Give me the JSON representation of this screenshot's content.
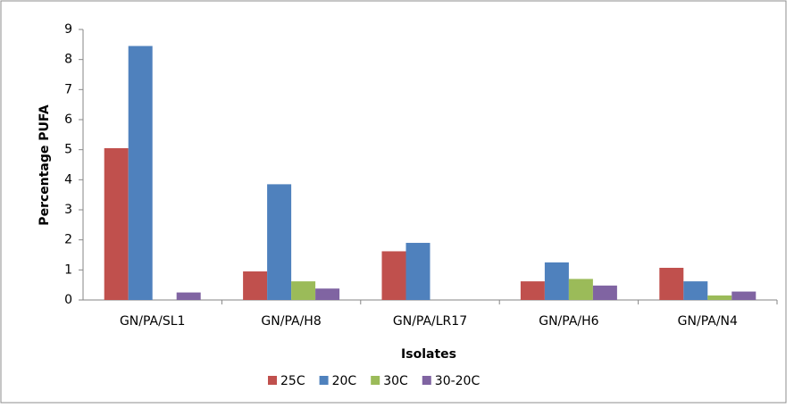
{
  "chart_data": {
    "type": "bar",
    "x_label": "Isolates",
    "y_label": "Percentage PUFA",
    "categories": [
      "GN/PA/SL1",
      "GN/PA/H8",
      "GN/PA/LR17",
      "GN/PA/H6",
      "GN/PA/N4"
    ],
    "series": [
      {
        "name": "25C",
        "color": "#c0504d",
        "values": [
          5.05,
          0.95,
          1.62,
          0.62,
          1.07
        ]
      },
      {
        "name": "20C",
        "color": "#4f81bd",
        "values": [
          8.45,
          3.85,
          1.9,
          1.25,
          0.62
        ]
      },
      {
        "name": "30C",
        "color": "#9bbb59",
        "values": [
          0,
          0.62,
          0,
          0.7,
          0.15
        ]
      },
      {
        "name": "30-20C",
        "color": "#8064a2",
        "values": [
          0.25,
          0.38,
          0,
          0.48,
          0.28
        ]
      }
    ],
    "ylim": [
      0,
      9
    ],
    "yticks": [
      0,
      1,
      2,
      3,
      4,
      5,
      6,
      7,
      8,
      9
    ],
    "grid": false,
    "legend": "bottom"
  }
}
